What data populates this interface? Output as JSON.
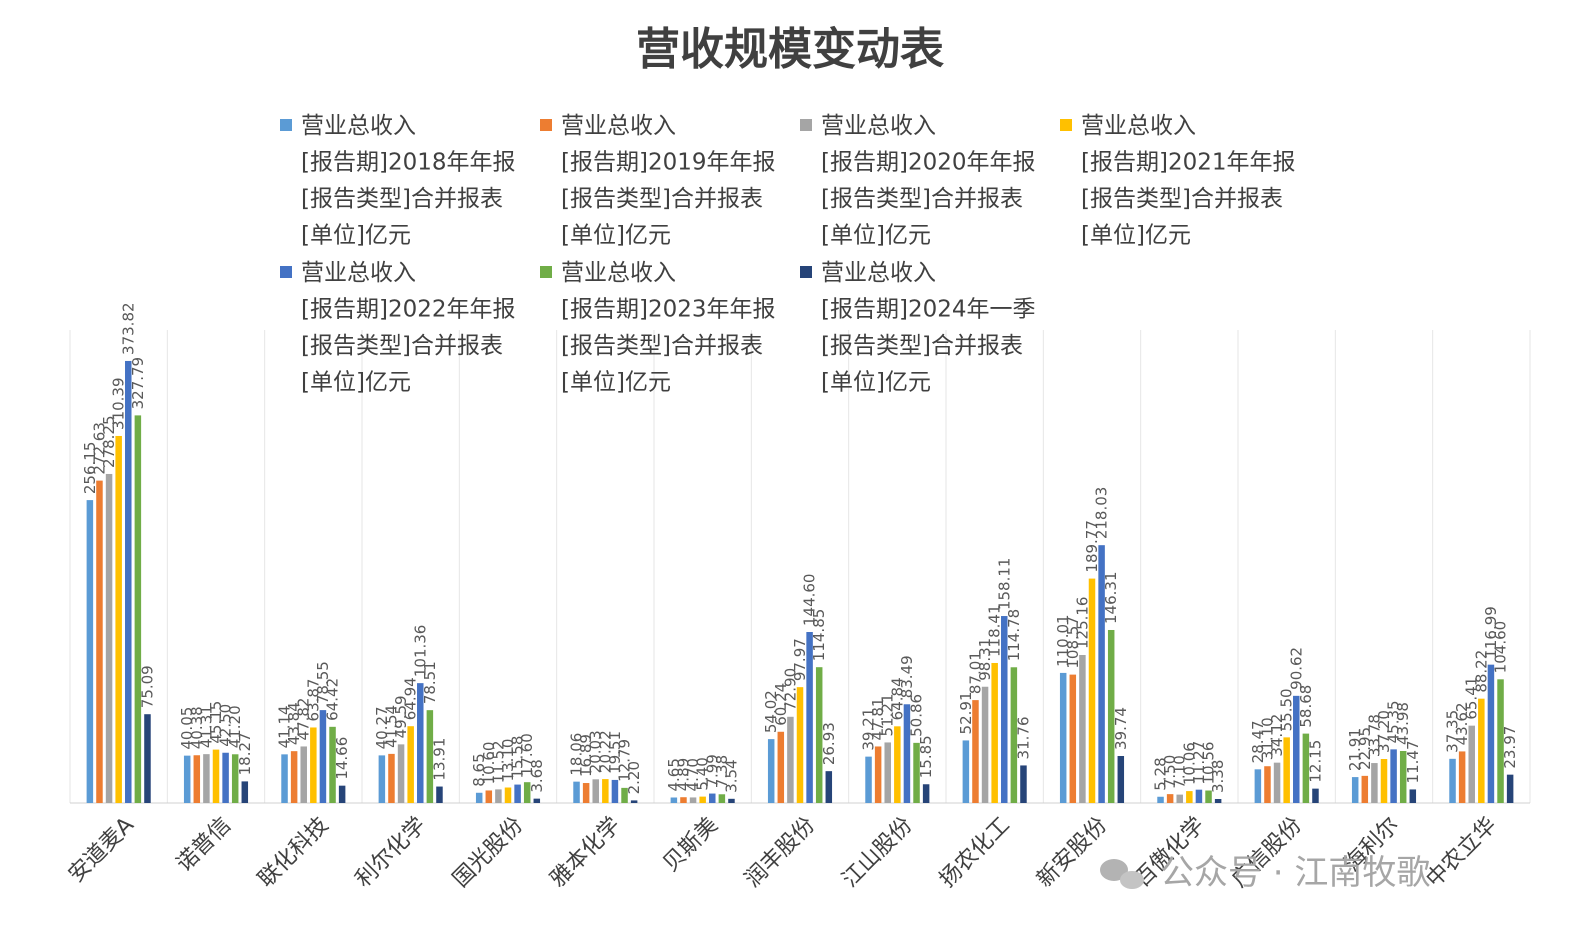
{
  "watermark": "公众号 · 江南牧歌",
  "colors": [
    "#5B9BD5",
    "#ED7D31",
    "#A5A5A5",
    "#FFC000",
    "#4472C4",
    "#70AD47",
    "#264478"
  ],
  "chart_data": {
    "type": "bar",
    "title": "营收规模变动表",
    "xlabel": "",
    "ylabel": "",
    "ylim": [
      0,
      400
    ],
    "grid": "vertical",
    "legend_position": "top",
    "categories": [
      "安道麦A",
      "诺普信",
      "联化科技",
      "利尔化学",
      "国光股份",
      "雅本化学",
      "贝斯美",
      "润丰股份",
      "江山股份",
      "扬农化工",
      "新安股份",
      "百傲化学",
      "广信股份",
      "海利尔",
      "中农立华"
    ],
    "series": [
      {
        "name": [
          "营业总收入",
          "[报告期]2018年年报",
          "[报告类型]合并报表",
          "[单位]亿元"
        ],
        "values": [
          256.15,
          40.05,
          41.14,
          40.27,
          8.65,
          18.06,
          4.65,
          54.02,
          39.21,
          52.91,
          110.01,
          5.28,
          28.47,
          21.91,
          37.35
        ]
      },
      {
        "name": [
          "营业总收入",
          "[报告期]2019年年报",
          "[报告类型]合并报表",
          "[单位]亿元"
        ],
        "values": [
          272.63,
          40.38,
          43.84,
          41.54,
          10.6,
          16.89,
          4.89,
          60.24,
          47.81,
          87.01,
          108.57,
          7.5,
          31.1,
          22.95,
          43.62
        ]
      },
      {
        "name": [
          "营业总收入",
          "[报告期]2020年年报",
          "[报告类型]合并报表",
          "[单位]亿元"
        ],
        "values": [
          278.25,
          41.31,
          47.82,
          49.59,
          11.52,
          20.03,
          4.7,
          72.9,
          51.21,
          98.31,
          125.16,
          7.1,
          34.12,
          33.78,
          65.41
        ]
      },
      {
        "name": [
          "营业总收入",
          "[报告期]2021年年报",
          "[报告类型]合并报表",
          "[单位]亿元"
        ],
        "values": [
          310.39,
          45.15,
          63.87,
          64.94,
          13.1,
          20.22,
          5.4,
          97.97,
          64.84,
          118.41,
          189.77,
          10.06,
          55.5,
          37.2,
          88.22
        ]
      },
      {
        "name": [
          "营业总收入",
          "[报告期]2022年年报",
          "[报告类型]合并报表",
          "[单位]亿元"
        ],
        "values": [
          373.82,
          42.5,
          78.55,
          101.36,
          15.58,
          19.51,
          7.99,
          144.6,
          83.49,
          158.11,
          218.03,
          11.27,
          90.62,
          45.35,
          116.99
        ]
      },
      {
        "name": [
          "营业总收入",
          "[报告期]2023年年报",
          "[报告类型]合并报表",
          "[单位]亿元"
        ],
        "values": [
          327.79,
          41.2,
          64.42,
          78.51,
          17.6,
          12.79,
          7.38,
          114.85,
          50.86,
          114.78,
          146.31,
          10.56,
          58.68,
          43.98,
          104.6
        ]
      },
      {
        "name": [
          "营业总收入",
          "[报告期]2024年一季",
          "[报告类型]合并报表",
          "[单位]亿元"
        ],
        "values": [
          75.09,
          18.27,
          14.66,
          13.91,
          3.68,
          2.2,
          3.54,
          26.93,
          15.85,
          31.76,
          39.74,
          3.38,
          12.15,
          11.47,
          23.97
        ]
      }
    ],
    "label_text": [
      [
        "256.15",
        "40.05",
        "41.14",
        "40.27",
        "8.65",
        "18.06",
        "4.65",
        "54.02",
        "39.21",
        "52.91",
        "110.01",
        "5.28",
        "28.47",
        "21.91",
        "37.35"
      ],
      [
        "272.63",
        "40.38",
        "43.84",
        "41.54",
        "10.60",
        "16.89",
        "4.89",
        "60.24",
        "47.81",
        "87.01",
        "108.57",
        "7.50",
        "31.10",
        "22.95",
        "43.62"
      ],
      [
        "278.25",
        "41.31",
        "47.82",
        "49.59",
        "11.52",
        "20.03",
        "4.70",
        "72.90",
        "51.21",
        "98.31",
        "125.16",
        "7.10",
        "34.12",
        "33.78",
        "65.41"
      ],
      [
        "310.39",
        "45.15",
        "63.87",
        "64.94",
        "13.10",
        "20.22",
        "5.40",
        "97.97",
        "64.84",
        "118.41",
        "189.77",
        "10.06",
        "55.50",
        "37.20",
        "88.22"
      ],
      [
        "373.82",
        "42.50",
        "78.55",
        "101.36",
        "15.58",
        "19.51",
        "7.99",
        "144.60",
        "83.49",
        "158.11",
        "218.03",
        "11.27",
        "90.62",
        "45.35",
        "116.99"
      ],
      [
        "327.79",
        "41.20",
        "64.42",
        "78.51",
        "17.60",
        "12.79",
        "7.38",
        "114.85",
        "50.86",
        "114.78",
        "146.31",
        "10.56",
        "58.68",
        "43.98",
        "104.60"
      ],
      [
        "75.09",
        "18.27",
        "14.66",
        "13.91",
        "3.68",
        "2.20",
        "3.54",
        "26.93",
        "15.85",
        "31.76",
        "39.74",
        "3.38",
        "12.15",
        "11.47",
        "23.97"
      ]
    ]
  }
}
